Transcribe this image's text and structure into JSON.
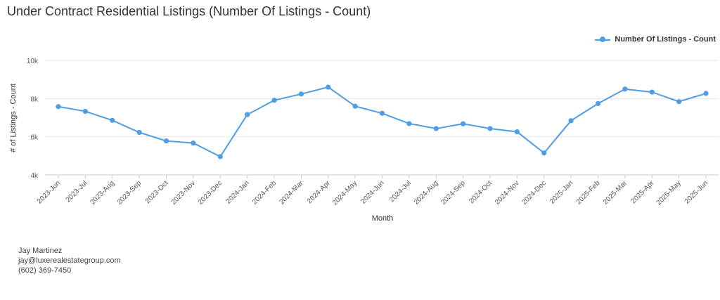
{
  "chart_data": {
    "type": "line",
    "title": "Under Contract Residential Listings (Number Of Listings - Count)",
    "xlabel": "Month",
    "ylabel": "# of Listings - Count",
    "ylim": [
      4000,
      10000
    ],
    "yticks": [
      4000,
      6000,
      8000,
      10000
    ],
    "ytick_labels": [
      "4k",
      "6k",
      "8k",
      "10k"
    ],
    "legend_position": "top-right",
    "grid": true,
    "color": "#4f9de6",
    "categories": [
      "2023-Jun",
      "2023-Jul",
      "2023-Aug",
      "2023-Sep",
      "2023-Oct",
      "2023-Nov",
      "2023-Dec",
      "2024-Jan",
      "2024-Feb",
      "2024-Mar",
      "2024-Apr",
      "2024-May",
      "2024-Jun",
      "2024-Jul",
      "2024-Aug",
      "2024-Sep",
      "2024-Oct",
      "2024-Nov",
      "2024-Dec",
      "2025-Jan",
      "2025-Feb",
      "2025-Mar",
      "2025-Apr",
      "2025-May",
      "2025-Jun"
    ],
    "series": [
      {
        "name": "Number Of Listings - Count",
        "values": [
          7580,
          7330,
          6860,
          6230,
          5780,
          5670,
          4960,
          7160,
          7910,
          8240,
          8600,
          7600,
          7230,
          6690,
          6430,
          6680,
          6430,
          6260,
          5150,
          6840,
          7740,
          8500,
          8340,
          7840,
          8270
        ]
      }
    ]
  },
  "footer": {
    "name": "Jay Martinez",
    "email": "jay@luxerealestategroup.com",
    "phone": "(602) 369-7450"
  }
}
